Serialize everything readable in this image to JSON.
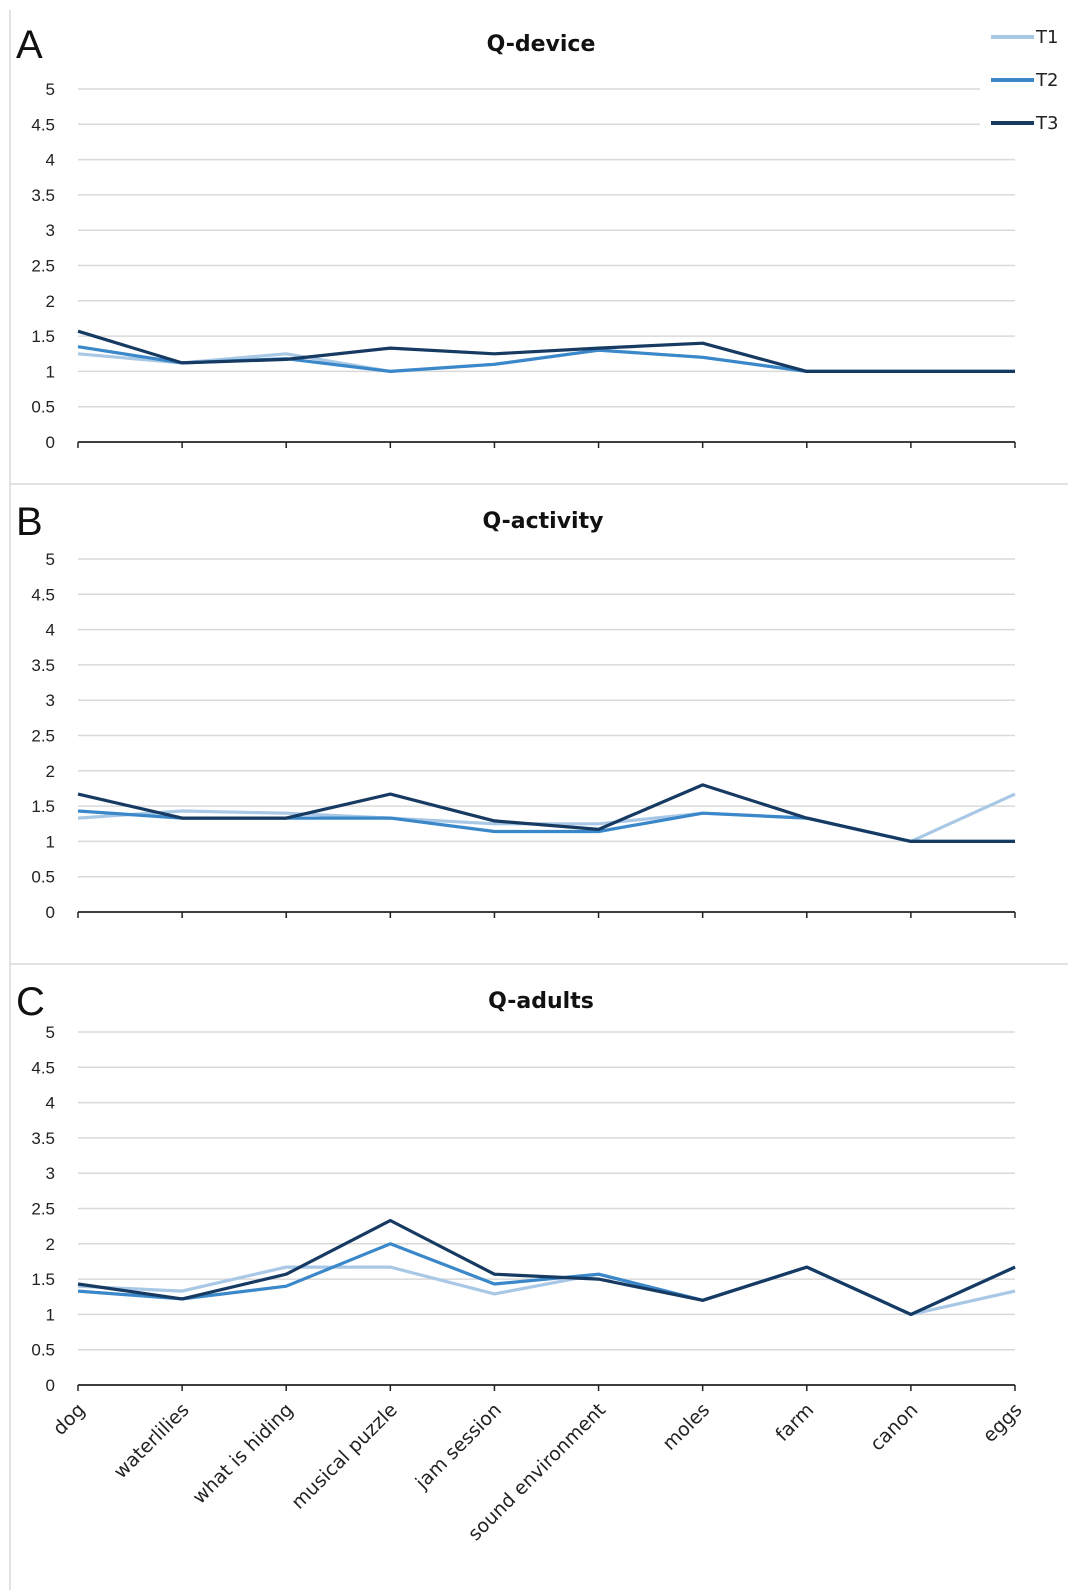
{
  "chart_data": [
    {
      "type": "line",
      "panel": "A",
      "title": "Q-device",
      "categories": [
        "dog",
        "waterlilies",
        "what is hiding",
        "musical puzzle",
        "jam session",
        "sound environment",
        "moles",
        "farm",
        "canon",
        "eggs"
      ],
      "ylim": [
        0,
        5
      ],
      "yticks": [
        "0",
        "0.5",
        "1",
        "1.5",
        "2",
        "2.5",
        "3",
        "3.5",
        "4",
        "4.5",
        "5"
      ],
      "grid": true,
      "legend": "top-right",
      "series": [
        {
          "name": "T1",
          "color": "#a9c8e6",
          "values": [
            1.25,
            1.12,
            1.25,
            1.0,
            1.1,
            1.3,
            1.2,
            1.0,
            1.0,
            1.0
          ]
        },
        {
          "name": "T2",
          "color": "#3a87c9",
          "values": [
            1.35,
            1.12,
            1.18,
            1.0,
            1.1,
            1.3,
            1.2,
            1.0,
            1.0,
            1.0
          ]
        },
        {
          "name": "T3",
          "color": "#163a61",
          "values": [
            1.57,
            1.12,
            1.17,
            1.33,
            1.25,
            1.33,
            1.4,
            1.0,
            1.0,
            1.0
          ]
        }
      ]
    },
    {
      "type": "line",
      "panel": "B",
      "title": "Q-activity",
      "categories": [
        "dog",
        "waterlilies",
        "what is hiding",
        "musical puzzle",
        "jam session",
        "sound environment",
        "moles",
        "farm",
        "canon",
        "eggs"
      ],
      "ylim": [
        0,
        5
      ],
      "yticks": [
        "0",
        "0.5",
        "1",
        "1.5",
        "2",
        "2.5",
        "3",
        "3.5",
        "4",
        "4.5",
        "5"
      ],
      "grid": true,
      "series": [
        {
          "name": "T1",
          "color": "#a9c8e6",
          "values": [
            1.33,
            1.43,
            1.4,
            1.33,
            1.25,
            1.25,
            1.4,
            1.33,
            1.0,
            1.67
          ]
        },
        {
          "name": "T2",
          "color": "#3a87c9",
          "values": [
            1.43,
            1.33,
            1.33,
            1.33,
            1.14,
            1.14,
            1.4,
            1.33,
            1.0,
            1.0
          ]
        },
        {
          "name": "T3",
          "color": "#163a61",
          "values": [
            1.67,
            1.33,
            1.33,
            1.67,
            1.29,
            1.17,
            1.8,
            1.33,
            1.0,
            1.0
          ]
        }
      ]
    },
    {
      "type": "line",
      "panel": "C",
      "title": "Q-adults",
      "categories": [
        "dog",
        "waterlilies",
        "what is hiding",
        "musical puzzle",
        "jam session",
        "sound environment",
        "moles",
        "farm",
        "canon",
        "eggs"
      ],
      "ylim": [
        0,
        5
      ],
      "yticks": [
        "0",
        "0.5",
        "1",
        "1.5",
        "2",
        "2.5",
        "3",
        "3.5",
        "4",
        "4.5",
        "5"
      ],
      "grid": true,
      "series": [
        {
          "name": "T1",
          "color": "#a9c8e6",
          "values": [
            1.4,
            1.33,
            1.67,
            1.67,
            1.29,
            1.57,
            1.2,
            1.67,
            1.0,
            1.33
          ]
        },
        {
          "name": "T2",
          "color": "#3a87c9",
          "values": [
            1.33,
            1.22,
            1.4,
            2.0,
            1.43,
            1.57,
            1.2,
            1.67,
            1.0,
            1.67
          ]
        },
        {
          "name": "T3",
          "color": "#163a61",
          "values": [
            1.43,
            1.22,
            1.57,
            2.33,
            1.57,
            1.5,
            1.2,
            1.67,
            1.0,
            1.67
          ]
        }
      ]
    }
  ]
}
